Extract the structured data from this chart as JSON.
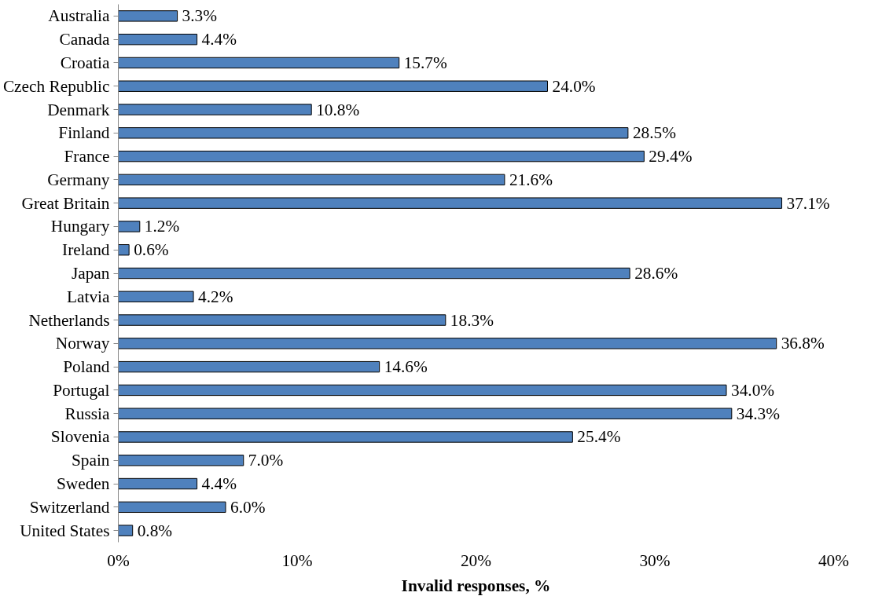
{
  "chart_data": {
    "type": "bar",
    "orientation": "horizontal",
    "xlabel": "Invalid responses, %",
    "categories": [
      "Australia",
      "Canada",
      "Croatia",
      "Czech Republic",
      "Denmark",
      "Finland",
      "France",
      "Germany",
      "Great Britain",
      "Hungary",
      "Ireland",
      "Japan",
      "Latvia",
      "Netherlands",
      "Norway",
      "Poland",
      "Portugal",
      "Russia",
      "Slovenia",
      "Spain",
      "Sweden",
      "Switzerland",
      "United States"
    ],
    "values": [
      3.3,
      4.4,
      15.7,
      24.0,
      10.8,
      28.5,
      29.4,
      21.6,
      37.1,
      1.2,
      0.6,
      28.6,
      4.2,
      18.3,
      36.8,
      14.6,
      34.0,
      34.3,
      25.4,
      7.0,
      4.4,
      6.0,
      0.8
    ],
    "value_labels": [
      "3.3%",
      "4.4%",
      "15.7%",
      "24.0%",
      "10.8%",
      "28.5%",
      "29.4%",
      "21.6%",
      "37.1%",
      "1.2%",
      "0.6%",
      "28.6%",
      "4.2%",
      "18.3%",
      "36.8%",
      "14.6%",
      "34.0%",
      "34.3%",
      "25.4%",
      "7.0%",
      "4.4%",
      "6.0%",
      "0.8%"
    ],
    "color": "#4f81bd",
    "xlim": [
      0,
      40
    ],
    "xticks": [
      {
        "value": 0,
        "label": "0%"
      },
      {
        "value": 10,
        "label": "10%"
      },
      {
        "value": 20,
        "label": "20%"
      },
      {
        "value": 30,
        "label": "30%"
      },
      {
        "value": 40,
        "label": "40%"
      }
    ],
    "grid": false
  }
}
